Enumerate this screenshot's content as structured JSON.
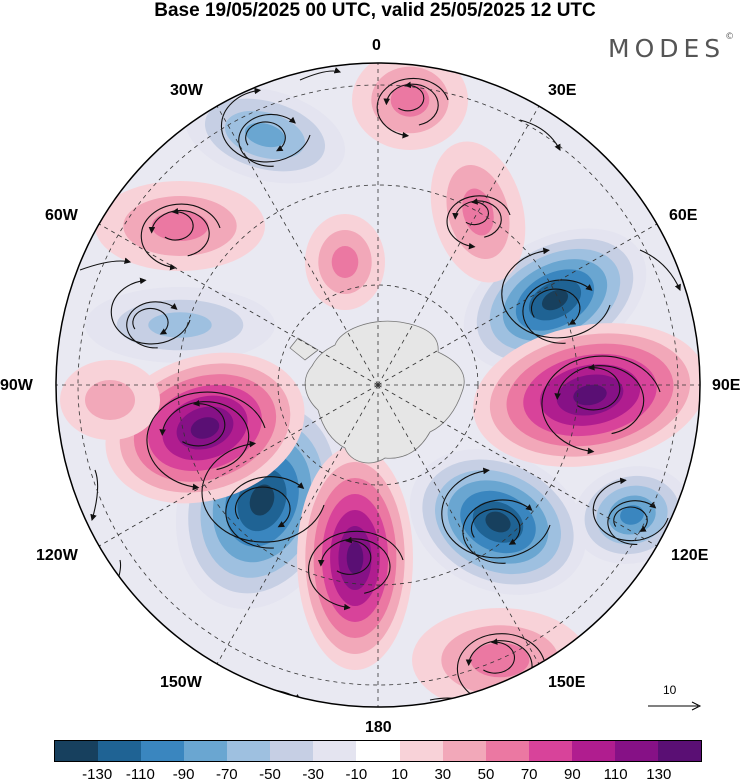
{
  "title": "Base 19/05/2025 00 UTC, valid 25/05/2025 12 UTC",
  "brand": "MODES",
  "brand_mark": "©",
  "longitude_labels": {
    "top": "0",
    "ne30": "30E",
    "ne60": "60E",
    "east": "90E",
    "se120": "120E",
    "se150": "150E",
    "bottom": "180",
    "sw150": "150W",
    "sw120": "120W",
    "west": "90W",
    "nw60": "60W",
    "nw30": "30W"
  },
  "vector_scale_label": "10",
  "colorbar": {
    "colors": [
      "#17405e",
      "#1f6394",
      "#3a86bf",
      "#6aa6d1",
      "#9ec0e0",
      "#c6cfe4",
      "#e4e4f0",
      "#ffffff",
      "#f8d2d8",
      "#f2a8b9",
      "#eb78a2",
      "#d8439a",
      "#b01d8f",
      "#861186",
      "#5a0f74"
    ],
    "tick_labels": [
      "-130",
      "-110",
      "-90",
      "-70",
      "-50",
      "-30",
      "-10",
      "10",
      "30",
      "50",
      "70",
      "90",
      "110",
      "130"
    ]
  },
  "map_colors": {
    "antarctica": "#e6e6e6",
    "coast": "#777777",
    "gridline": "#333333",
    "arrow": "#111111"
  }
}
